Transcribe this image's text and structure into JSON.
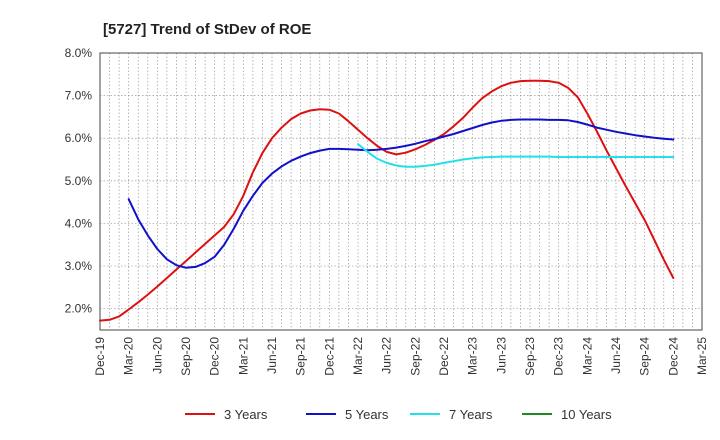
{
  "chart_data": {
    "type": "line",
    "title": "[5727]  Trend of StDev of ROE",
    "xlabel": "",
    "ylabel": "",
    "y_unit": "%",
    "ylim": [
      1.5,
      8.0
    ],
    "yticks": [
      2.0,
      3.0,
      4.0,
      5.0,
      6.0,
      7.0,
      8.0
    ],
    "ytick_labels": [
      "2.0%",
      "3.0%",
      "4.0%",
      "5.0%",
      "6.0%",
      "7.0%",
      "8.0%"
    ],
    "xlim": [
      "2019-12",
      "2025-03"
    ],
    "xtick_labels": [
      "Dec-19",
      "Mar-20",
      "Jun-20",
      "Sep-20",
      "Dec-20",
      "Mar-21",
      "Jun-21",
      "Sep-21",
      "Dec-21",
      "Mar-22",
      "Jun-22",
      "Sep-22",
      "Dec-22",
      "Mar-23",
      "Jun-23",
      "Sep-23",
      "Dec-23",
      "Mar-24",
      "Jun-24",
      "Sep-24",
      "Dec-24",
      "Mar-25"
    ],
    "grid": true,
    "legend_position": "bottom",
    "series": [
      {
        "name": "3 Years",
        "color": "#dd1111",
        "x": [
          "2019-12",
          "2020-01",
          "2020-02",
          "2020-03",
          "2020-04",
          "2020-05",
          "2020-06",
          "2020-07",
          "2020-08",
          "2020-09",
          "2020-10",
          "2020-11",
          "2020-12",
          "2021-01",
          "2021-02",
          "2021-03",
          "2021-04",
          "2021-05",
          "2021-06",
          "2021-07",
          "2021-08",
          "2021-09",
          "2021-10",
          "2021-11",
          "2021-12",
          "2022-01",
          "2022-02",
          "2022-03",
          "2022-04",
          "2022-05",
          "2022-06",
          "2022-07",
          "2022-08",
          "2022-09",
          "2022-10",
          "2022-11",
          "2022-12",
          "2023-01",
          "2023-02",
          "2023-03",
          "2023-04",
          "2023-05",
          "2023-06",
          "2023-07",
          "2023-08",
          "2023-09",
          "2023-10",
          "2023-11",
          "2023-12",
          "2024-01",
          "2024-02",
          "2024-03",
          "2024-04",
          "2024-05",
          "2024-06",
          "2024-07",
          "2024-08",
          "2024-09",
          "2024-10",
          "2024-11",
          "2024-12"
        ],
        "values": [
          1.72,
          1.74,
          1.82,
          1.98,
          2.15,
          2.33,
          2.52,
          2.72,
          2.92,
          3.12,
          3.32,
          3.52,
          3.72,
          3.92,
          4.22,
          4.65,
          5.2,
          5.65,
          6.0,
          6.25,
          6.45,
          6.58,
          6.65,
          6.68,
          6.67,
          6.58,
          6.4,
          6.2,
          6.0,
          5.82,
          5.68,
          5.62,
          5.66,
          5.74,
          5.84,
          5.96,
          6.1,
          6.28,
          6.48,
          6.72,
          6.94,
          7.1,
          7.22,
          7.3,
          7.34,
          7.35,
          7.35,
          7.34,
          7.3,
          7.18,
          6.96,
          6.58,
          6.16,
          5.72,
          5.3,
          4.88,
          4.48,
          4.08,
          3.62,
          3.15,
          2.72
        ]
      },
      {
        "name": "5 Years",
        "color": "#1111cc",
        "x": [
          "2020-03",
          "2020-04",
          "2020-05",
          "2020-06",
          "2020-07",
          "2020-08",
          "2020-09",
          "2020-10",
          "2020-11",
          "2020-12",
          "2021-01",
          "2021-02",
          "2021-03",
          "2021-04",
          "2021-05",
          "2021-06",
          "2021-07",
          "2021-08",
          "2021-09",
          "2021-10",
          "2021-11",
          "2021-12",
          "2022-01",
          "2022-02",
          "2022-03",
          "2022-04",
          "2022-05",
          "2022-06",
          "2022-07",
          "2022-08",
          "2022-09",
          "2022-10",
          "2022-11",
          "2022-12",
          "2023-01",
          "2023-02",
          "2023-03",
          "2023-04",
          "2023-05",
          "2023-06",
          "2023-07",
          "2023-08",
          "2023-09",
          "2023-10",
          "2023-11",
          "2023-12",
          "2024-01",
          "2024-02",
          "2024-03",
          "2024-04",
          "2024-05",
          "2024-06",
          "2024-07",
          "2024-08",
          "2024-09",
          "2024-10",
          "2024-11",
          "2024-12"
        ],
        "values": [
          4.57,
          4.1,
          3.72,
          3.4,
          3.16,
          3.02,
          2.96,
          2.98,
          3.07,
          3.22,
          3.5,
          3.88,
          4.3,
          4.65,
          4.95,
          5.17,
          5.34,
          5.47,
          5.57,
          5.65,
          5.71,
          5.75,
          5.75,
          5.74,
          5.73,
          5.72,
          5.73,
          5.75,
          5.78,
          5.82,
          5.87,
          5.93,
          5.98,
          6.04,
          6.1,
          6.17,
          6.24,
          6.31,
          6.37,
          6.41,
          6.43,
          6.44,
          6.44,
          6.44,
          6.43,
          6.43,
          6.42,
          6.38,
          6.32,
          6.25,
          6.2,
          6.15,
          6.11,
          6.07,
          6.04,
          6.01,
          5.99,
          5.97
        ]
      },
      {
        "name": "7 Years",
        "color": "#22e0e8",
        "x": [
          "2022-03",
          "2022-04",
          "2022-05",
          "2022-06",
          "2022-07",
          "2022-08",
          "2022-09",
          "2022-10",
          "2022-11",
          "2022-12",
          "2023-01",
          "2023-02",
          "2023-03",
          "2023-04",
          "2023-05",
          "2023-06",
          "2023-07",
          "2023-08",
          "2023-09",
          "2023-10",
          "2023-11",
          "2023-12",
          "2024-01",
          "2024-02",
          "2024-03",
          "2024-04",
          "2024-05",
          "2024-06",
          "2024-07",
          "2024-08",
          "2024-09",
          "2024-10",
          "2024-11",
          "2024-12"
        ],
        "values": [
          5.86,
          5.68,
          5.52,
          5.42,
          5.36,
          5.33,
          5.33,
          5.35,
          5.38,
          5.42,
          5.46,
          5.5,
          5.53,
          5.55,
          5.56,
          5.57,
          5.57,
          5.57,
          5.57,
          5.57,
          5.57,
          5.56,
          5.56,
          5.56,
          5.56,
          5.56,
          5.56,
          5.56,
          5.56,
          5.56,
          5.56,
          5.56,
          5.56,
          5.56
        ]
      },
      {
        "name": "10 Years",
        "color": "#228822",
        "x": [],
        "values": []
      }
    ]
  }
}
